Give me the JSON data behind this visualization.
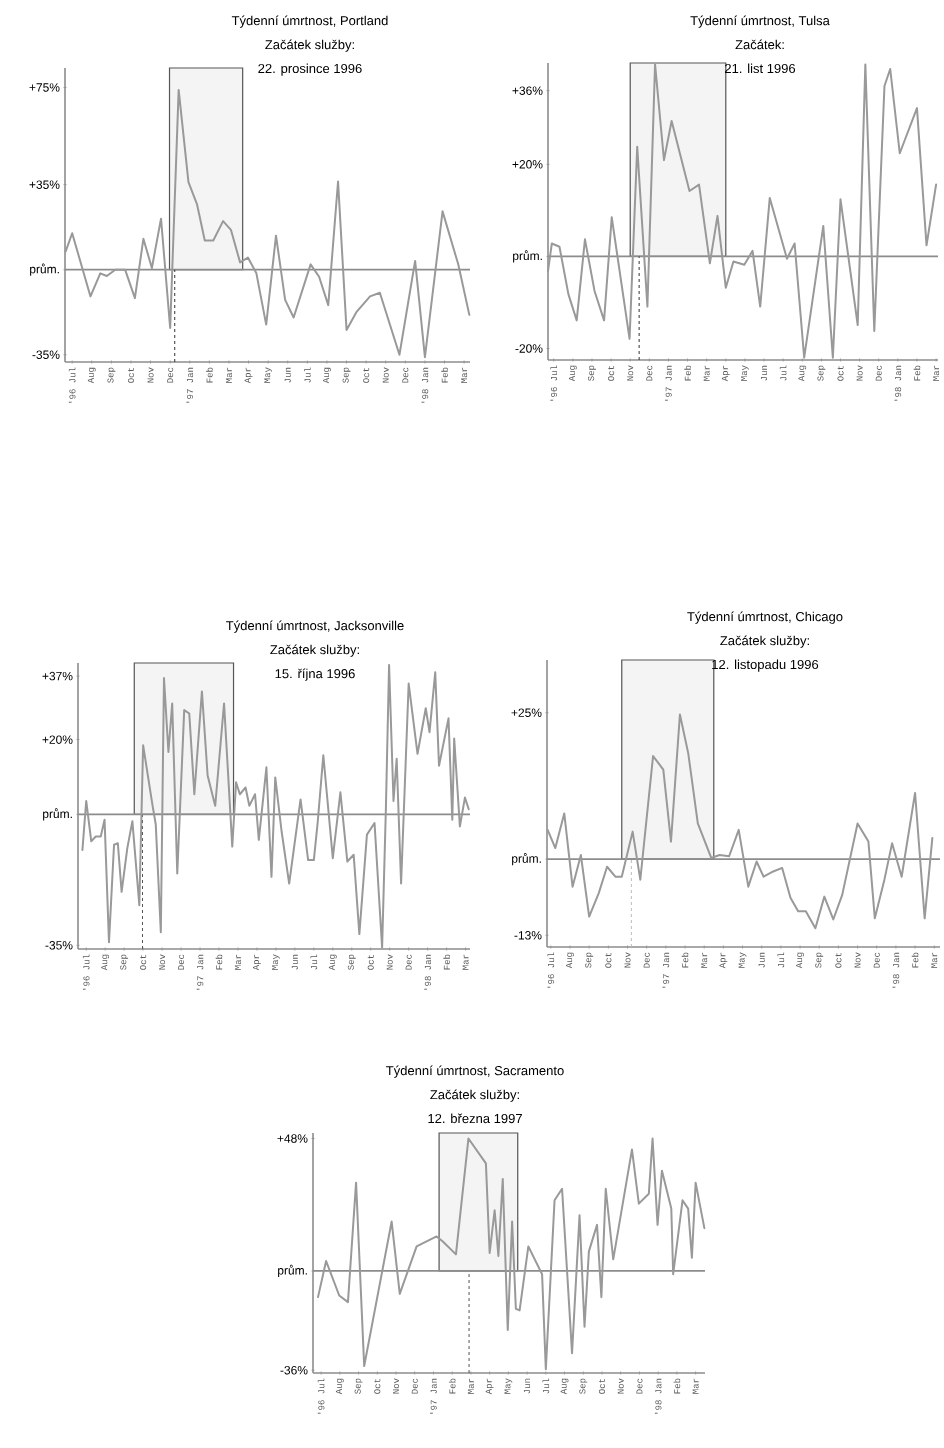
{
  "chart_data": [
    {
      "type": "line",
      "title": "Týdenní úmrtnost, Portland",
      "subtitle": "Začátek služby:",
      "annotations": [
        "22. prosince 1996"
      ],
      "color": "#999999",
      "x": [
        "1996-07-06",
        "1996-07-16",
        "1996-08-14",
        "1996-08-29",
        "1996-09-09",
        "1996-09-22",
        "1996-10-07",
        "1996-10-22",
        "1996-11-05",
        "1996-11-18",
        "1996-12-02",
        "1996-12-16",
        "1996-12-29",
        "1997-01-14",
        "1997-01-27",
        "1997-02-09",
        "1997-02-22",
        "1997-03-07",
        "1997-03-19",
        "1997-04-03",
        "1997-04-15",
        "1997-04-28",
        "1997-05-13",
        "1997-05-28",
        "1997-06-12",
        "1997-06-25",
        "1997-07-21",
        "1997-08-04",
        "1997-08-18",
        "1997-09-03",
        "1997-09-16",
        "1997-10-01",
        "1997-10-22",
        "1997-11-07",
        "1997-12-07",
        "1998-01-01",
        "1998-01-16",
        "1998-02-13",
        "1998-03-07",
        "1998-03-24"
      ],
      "values": [
        7.5,
        15,
        -11,
        -1.5,
        -2.6,
        0,
        0,
        -11.7,
        12.7,
        0.7,
        21,
        -24,
        74,
        36,
        27,
        12,
        12,
        20,
        16.4,
        3,
        5,
        -1.5,
        -22.6,
        14,
        -12.4,
        -19.7,
        2.2,
        -2.9,
        -14.6,
        36.3,
        -24.8,
        -17.5,
        -11,
        -9.5,
        -35,
        3.6,
        -36,
        24,
        2.2,
        -18.6
      ],
      "xlim": [
        "1996-07-05",
        "1998-03-25"
      ],
      "ylim": [
        -38,
        83
      ],
      "xticks": [
        {
          "value": "1996-07-16",
          "label": "'96 Jul"
        },
        {
          "value": "1996-08-16",
          "label": "Aug"
        },
        {
          "value": "1996-09-16",
          "label": "Sep"
        },
        {
          "value": "1996-10-16",
          "label": "Oct"
        },
        {
          "value": "1996-11-16",
          "label": "Nov"
        },
        {
          "value": "1996-12-16",
          "label": "Dec"
        },
        {
          "value": "1997-01-16",
          "label": "'97 Jan"
        },
        {
          "value": "1997-02-16",
          "label": "Feb"
        },
        {
          "value": "1997-03-16",
          "label": "Mar"
        },
        {
          "value": "1997-04-16",
          "label": "Apr"
        },
        {
          "value": "1997-05-16",
          "label": "May"
        },
        {
          "value": "1997-06-16",
          "label": "Jun"
        },
        {
          "value": "1997-07-16",
          "label": "Jul"
        },
        {
          "value": "1997-08-16",
          "label": "Aug"
        },
        {
          "value": "1997-09-16",
          "label": "Sep"
        },
        {
          "value": "1997-10-16",
          "label": "Oct"
        },
        {
          "value": "1997-11-16",
          "label": "Nov"
        },
        {
          "value": "1997-12-16",
          "label": "Dec"
        },
        {
          "value": "1998-01-16",
          "label": "'98 Jan"
        },
        {
          "value": "1998-02-16",
          "label": "Feb"
        },
        {
          "value": "1998-03-16",
          "label": "Mar"
        }
      ],
      "yticks": [
        {
          "value": 75,
          "label": "+75%"
        },
        {
          "value": 35,
          "label": "+35%"
        },
        {
          "value": 0,
          "label": "prům."
        },
        {
          "value": -35,
          "label": "-35%"
        }
      ],
      "ref_lines": [
        {
          "axis": "y",
          "value": 0,
          "color": "#8c8c8c"
        },
        {
          "axis": "x",
          "value": "1996-12-23",
          "color": "#333333",
          "line_style": "dashed"
        }
      ],
      "bands": [
        {
          "axis": "x",
          "from": "1996-12-15",
          "to": "1997-04-07",
          "color": "#f4f4f4"
        }
      ]
    },
    {
      "type": "line",
      "title": "Týdenní úmrtnost, Tulsa",
      "subtitle": "Začátek:",
      "annotations": [
        "21. list 1996"
      ],
      "color": "#999999",
      "x": [
        "1996-07-07",
        "1996-07-13",
        "1996-07-25",
        "1996-08-09",
        "1996-08-22",
        "1996-09-05",
        "1996-09-20",
        "1996-10-05",
        "1996-10-17",
        "1996-11-15",
        "1996-11-27",
        "1996-12-13",
        "1996-12-25",
        "1997-01-09",
        "1997-01-21",
        "1997-02-19",
        "1997-03-04",
        "1997-03-21",
        "1997-04-03",
        "1997-04-16",
        "1997-04-28",
        "1997-05-15",
        "1997-05-28",
        "1997-06-10",
        "1997-06-25",
        "1997-07-22",
        "1997-08-04",
        "1997-08-19",
        "1997-09-19",
        "1997-10-04",
        "1997-10-16",
        "1997-11-13",
        "1997-11-25",
        "1997-12-09",
        "1997-12-25",
        "1998-01-04",
        "1998-01-19",
        "1998-02-16",
        "1998-03-01",
        "1998-03-16"
      ],
      "values": [
        -3.2,
        2.8,
        2.1,
        -8.2,
        -13.9,
        3.7,
        -7.5,
        -13.9,
        8.5,
        -17.9,
        23.8,
        -10.9,
        41.7,
        20.9,
        29.4,
        14.2,
        15.6,
        -1.5,
        8.8,
        -6.8,
        -1.1,
        -1.8,
        1.2,
        -10.9,
        12.7,
        -0.5,
        2.8,
        -22,
        6.6,
        -22,
        12.4,
        -14.9,
        41.7,
        -16.2,
        37,
        40.7,
        22.4,
        32.2,
        2.4,
        15.6
      ],
      "xlim": [
        "1996-07-07",
        "1998-03-19"
      ],
      "ylim": [
        -22.5,
        42
      ],
      "xticks": [
        {
          "value": "1996-07-16",
          "label": "'96 Jul"
        },
        {
          "value": "1996-08-16",
          "label": "Aug"
        },
        {
          "value": "1996-09-16",
          "label": "Sep"
        },
        {
          "value": "1996-10-16",
          "label": "Oct"
        },
        {
          "value": "1996-11-16",
          "label": "Nov"
        },
        {
          "value": "1996-12-16",
          "label": "Dec"
        },
        {
          "value": "1997-01-16",
          "label": "'97 Jan"
        },
        {
          "value": "1997-02-16",
          "label": "Feb"
        },
        {
          "value": "1997-03-16",
          "label": "Mar"
        },
        {
          "value": "1997-04-16",
          "label": "Apr"
        },
        {
          "value": "1997-05-16",
          "label": "May"
        },
        {
          "value": "1997-06-16",
          "label": "Jun"
        },
        {
          "value": "1997-07-16",
          "label": "Jul"
        },
        {
          "value": "1997-08-16",
          "label": "Aug"
        },
        {
          "value": "1997-09-16",
          "label": "Sep"
        },
        {
          "value": "1997-10-16",
          "label": "Oct"
        },
        {
          "value": "1997-11-16",
          "label": "Nov"
        },
        {
          "value": "1997-12-16",
          "label": "Dec"
        },
        {
          "value": "1998-01-16",
          "label": "'98 Jan"
        },
        {
          "value": "1998-02-16",
          "label": "Feb"
        },
        {
          "value": "1998-03-16",
          "label": "Mar"
        }
      ],
      "yticks": [
        {
          "value": 36,
          "label": "+36%"
        },
        {
          "value": 20,
          "label": "+20%"
        },
        {
          "value": 0,
          "label": "prům."
        },
        {
          "value": -20,
          "label": "-20%"
        }
      ],
      "ref_lines": [
        {
          "axis": "y",
          "value": 0,
          "color": "#8c8c8c"
        },
        {
          "axis": "x",
          "value": "1996-11-30",
          "color": "#333333",
          "line_style": "dashed"
        }
      ],
      "bands": [
        {
          "axis": "x",
          "from": "1996-11-16",
          "to": "1997-04-16",
          "color": "#f4f4f4"
        }
      ]
    },
    {
      "type": "line",
      "title": "Týdenní úmrtnost, Jacksonville",
      "subtitle": "Začátek služby:",
      "annotations": [
        "15. října 1996"
      ],
      "color": "#999999",
      "x": [
        "1996-07-10",
        "1996-07-16",
        "1996-07-24",
        "1996-08-01",
        "1996-08-09",
        "1996-08-15",
        "1996-08-22",
        "1996-08-30",
        "1996-09-06",
        "1996-09-12",
        "1996-09-21",
        "1996-09-29",
        "1996-10-10",
        "1996-10-16",
        "1996-11-01",
        "1996-11-06",
        "1996-11-14",
        "1996-11-19",
        "1996-11-26",
        "1996-12-02",
        "1996-12-10",
        "1996-12-21",
        "1996-12-29",
        "1997-01-07",
        "1997-01-19",
        "1997-01-28",
        "1997-02-10",
        "1997-02-24",
        "1997-03-07",
        "1997-03-13",
        "1997-03-19",
        "1997-03-28",
        "1997-04-04",
        "1997-04-13",
        "1997-04-19",
        "1997-05-01",
        "1997-05-09",
        "1997-05-15",
        "1997-05-25",
        "1997-06-07",
        "1997-06-25",
        "1997-07-07",
        "1997-07-16",
        "1997-07-22",
        "1997-08-01",
        "1997-08-16",
        "1997-08-28",
        "1997-09-09",
        "1997-09-19",
        "1997-09-28",
        "1997-10-10",
        "1997-10-22",
        "1997-11-04",
        "1997-11-10",
        "1997-11-15",
        "1997-11-22",
        "1997-11-27",
        "1997-12-04",
        "1997-12-16",
        "1997-12-30",
        "1998-01-13",
        "1998-01-19",
        "1998-01-28",
        "1998-02-04",
        "1998-02-19",
        "1998-02-25",
        "1998-02-28",
        "1998-03-07",
        "1998-03-15",
        "1998-03-21"
      ],
      "values": [
        -9.5,
        3.6,
        -7.2,
        -5.9,
        -5.9,
        -1.4,
        -34.2,
        -8.1,
        -7.7,
        -20.7,
        -9,
        -1.8,
        -24.3,
        18.5,
        2.3,
        -2.7,
        -31.5,
        36.5,
        16.7,
        29.7,
        -15.8,
        27.9,
        27,
        5.4,
        32.9,
        10.4,
        2.3,
        29.7,
        -8.6,
        8.6,
        5.4,
        7.2,
        2.3,
        5.4,
        -6.8,
        12.6,
        -16.7,
        9.9,
        -4.5,
        -18.5,
        4,
        -12.2,
        -12.2,
        -2.3,
        15.8,
        -11.7,
        5.9,
        -12.6,
        -10.8,
        -32,
        -5.4,
        -2.3,
        -35.6,
        1.8,
        40,
        3.6,
        14.9,
        -18.5,
        35,
        16.2,
        28.4,
        22,
        38,
        13,
        25.7,
        -1.4,
        20.3,
        -3.2,
        4.5,
        1.4
      ],
      "xlim": [
        "1996-07-03",
        "1998-03-23"
      ],
      "ylim": [
        -36,
        40.5
      ],
      "xticks": [
        {
          "value": "1996-07-16",
          "label": "'96 Jul"
        },
        {
          "value": "1996-08-16",
          "label": "Aug"
        },
        {
          "value": "1996-09-16",
          "label": "Sep"
        },
        {
          "value": "1996-10-16",
          "label": "Oct"
        },
        {
          "value": "1996-11-16",
          "label": "Nov"
        },
        {
          "value": "1996-12-16",
          "label": "Dec"
        },
        {
          "value": "1997-01-16",
          "label": "'97 Jan"
        },
        {
          "value": "1997-02-16",
          "label": "Feb"
        },
        {
          "value": "1997-03-16",
          "label": "Mar"
        },
        {
          "value": "1997-04-16",
          "label": "Apr"
        },
        {
          "value": "1997-05-16",
          "label": "May"
        },
        {
          "value": "1997-06-16",
          "label": "Jun"
        },
        {
          "value": "1997-07-16",
          "label": "Jul"
        },
        {
          "value": "1997-08-16",
          "label": "Aug"
        },
        {
          "value": "1997-09-16",
          "label": "Sep"
        },
        {
          "value": "1997-10-16",
          "label": "Oct"
        },
        {
          "value": "1997-11-16",
          "label": "Nov"
        },
        {
          "value": "1997-12-16",
          "label": "Dec"
        },
        {
          "value": "1998-01-16",
          "label": "'98 Jan"
        },
        {
          "value": "1998-02-16",
          "label": "Feb"
        },
        {
          "value": "1998-03-16",
          "label": "Mar"
        }
      ],
      "yticks": [
        {
          "value": 37,
          "label": "+37%"
        },
        {
          "value": 20,
          "label": "+20%"
        },
        {
          "value": 0,
          "label": "prům."
        },
        {
          "value": -35,
          "label": "-35%"
        }
      ],
      "ref_lines": [
        {
          "axis": "y",
          "value": 0,
          "color": "#8c8c8c"
        },
        {
          "axis": "x",
          "value": "1996-10-15",
          "color": "#555555",
          "line_style": "dashed"
        }
      ],
      "bands": [
        {
          "axis": "x",
          "from": "1996-10-02",
          "to": "1997-03-09",
          "color": "#f4f4f4"
        }
      ]
    },
    {
      "type": "line",
      "title": "Týdenní úmrtnost, Chicago",
      "subtitle": "Začátek služby:",
      "annotations": [
        "12. listopadu 1996"
      ],
      "color": "#999999",
      "x": [
        "1996-07-11",
        "1996-07-23",
        "1996-08-07",
        "1996-08-20",
        "1996-09-03",
        "1996-09-16",
        "1996-10-01",
        "1996-10-14",
        "1996-10-27",
        "1996-11-07",
        "1996-11-24",
        "1996-12-06",
        "1996-12-26",
        "1997-01-12",
        "1997-01-24",
        "1997-02-08",
        "1997-02-21",
        "1997-03-06",
        "1997-03-27",
        "1997-04-10",
        "1997-04-25",
        "1997-05-10",
        "1997-05-25",
        "1997-06-08",
        "1997-06-19",
        "1997-07-04",
        "1997-07-18",
        "1997-08-01",
        "1997-08-13",
        "1997-08-25",
        "1997-09-10",
        "1997-09-24",
        "1997-10-08",
        "1997-10-22",
        "1997-11-16",
        "1997-12-03",
        "1997-12-13",
        "1997-12-28",
        "1998-01-10",
        "1998-01-25",
        "1998-02-16",
        "1998-03-01",
        "1998-03-13"
      ],
      "values": [
        5,
        1.9,
        7.8,
        -4.7,
        0.7,
        -9.8,
        -5.8,
        -1.3,
        -3,
        -3,
        4.7,
        -3.5,
        17.6,
        15.3,
        3,
        24.7,
        18.1,
        6.1,
        0.2,
        0.7,
        0.5,
        5,
        -4.7,
        -0.4,
        -3,
        -2.1,
        -1.5,
        -6.6,
        -8.9,
        -8.9,
        -11.8,
        -6.4,
        -10.3,
        -6.1,
        6.1,
        3,
        -10.1,
        -3.5,
        2.7,
        -3,
        11.3,
        -10.1,
        3.6
      ],
      "xlim": [
        "1996-07-10",
        "1998-03-25"
      ],
      "ylim": [
        -15,
        34
      ],
      "xticks": [
        {
          "value": "1996-07-16",
          "label": "'96 Jul"
        },
        {
          "value": "1996-08-16",
          "label": "Aug"
        },
        {
          "value": "1996-09-16",
          "label": "Sep"
        },
        {
          "value": "1996-10-16",
          "label": "Oct"
        },
        {
          "value": "1996-11-16",
          "label": "Nov"
        },
        {
          "value": "1996-12-16",
          "label": "Dec"
        },
        {
          "value": "1997-01-16",
          "label": "'97 Jan"
        },
        {
          "value": "1997-02-16",
          "label": "Feb"
        },
        {
          "value": "1997-03-16",
          "label": "Mar"
        },
        {
          "value": "1997-04-16",
          "label": "Apr"
        },
        {
          "value": "1997-05-16",
          "label": "May"
        },
        {
          "value": "1997-06-16",
          "label": "Jun"
        },
        {
          "value": "1997-07-16",
          "label": "Jul"
        },
        {
          "value": "1997-08-16",
          "label": "Aug"
        },
        {
          "value": "1997-09-16",
          "label": "Sep"
        },
        {
          "value": "1997-10-16",
          "label": "Oct"
        },
        {
          "value": "1997-11-16",
          "label": "Nov"
        },
        {
          "value": "1997-12-16",
          "label": "Dec"
        },
        {
          "value": "1998-01-16",
          "label": "'98 Jan"
        },
        {
          "value": "1998-02-16",
          "label": "Feb"
        },
        {
          "value": "1998-03-16",
          "label": "Mar"
        }
      ],
      "yticks": [
        {
          "value": 25,
          "label": "+25%"
        },
        {
          "value": 0,
          "label": "prům."
        },
        {
          "value": -13,
          "label": "-13%"
        }
      ],
      "ref_lines": [
        {
          "axis": "y",
          "value": 0,
          "color": "#8c8c8c"
        },
        {
          "axis": "x",
          "value": "1996-11-22",
          "color": "#bbbbbb",
          "line_style": "dashed"
        }
      ],
      "bands": [
        {
          "axis": "x",
          "from": "1996-11-07",
          "to": "1997-04-01",
          "color": "#f4f4f4"
        }
      ]
    },
    {
      "type": "line",
      "title": "Týdenní úmrtnost, Sacramento",
      "subtitle": "Začátek služby:",
      "annotations": [
        "12. března 1997"
      ],
      "color": "#999999",
      "x": [
        "1996-07-11",
        "1996-07-24",
        "1996-08-15",
        "1996-08-29",
        "1996-09-12",
        "1996-09-25",
        "1996-11-09",
        "1996-11-22",
        "1996-12-19",
        "1997-01-21",
        "1997-02-01",
        "1997-02-22",
        "1997-03-12",
        "1997-04-10",
        "1997-04-16",
        "1997-04-24",
        "1997-04-30",
        "1997-05-07",
        "1997-05-15",
        "1997-05-22",
        "1997-05-28",
        "1997-06-04",
        "1997-06-18",
        "1997-07-10",
        "1997-07-16",
        "1997-07-30",
        "1997-08-12",
        "1997-08-28",
        "1997-09-10",
        "1997-09-18",
        "1997-09-25",
        "1997-10-08",
        "1997-10-15",
        "1997-10-22",
        "1997-11-04",
        "1997-12-04",
        "1997-12-15",
        "1998-01-01",
        "1998-01-07",
        "1998-01-15",
        "1998-01-22",
        "1998-02-07",
        "1998-02-10",
        "1998-02-25",
        "1998-03-04",
        "1998-03-10",
        "1998-03-16",
        "1998-03-30"
      ],
      "values": [
        -9.5,
        3.6,
        -8.9,
        -11.3,
        32,
        -34.5,
        17.9,
        -8.3,
        8.9,
        12.5,
        10.7,
        6,
        48,
        39,
        6.5,
        22,
        5.4,
        33.3,
        -21.4,
        17.9,
        -13.7,
        -14.3,
        8.9,
        -1.2,
        -35.6,
        25.6,
        29.8,
        -29.8,
        20.2,
        -20.2,
        7.1,
        16.7,
        -9.5,
        29.8,
        4.2,
        44,
        24.4,
        28,
        48,
        16.7,
        36.3,
        22.6,
        -1.2,
        25.6,
        22.6,
        4.8,
        32,
        15.5
      ],
      "xlim": [
        "1996-07-03",
        "1998-04-01"
      ],
      "ylim": [
        -37,
        50
      ],
      "xticks": [
        {
          "value": "1996-07-16",
          "label": "'96 Jul"
        },
        {
          "value": "1996-08-16",
          "label": "Aug"
        },
        {
          "value": "1996-09-16",
          "label": "Sep"
        },
        {
          "value": "1996-10-16",
          "label": "Oct"
        },
        {
          "value": "1996-11-16",
          "label": "Nov"
        },
        {
          "value": "1996-12-16",
          "label": "Dec"
        },
        {
          "value": "1997-01-16",
          "label": "'97 Jan"
        },
        {
          "value": "1997-02-16",
          "label": "Feb"
        },
        {
          "value": "1997-03-16",
          "label": "Mar"
        },
        {
          "value": "1997-04-16",
          "label": "Apr"
        },
        {
          "value": "1997-05-16",
          "label": "May"
        },
        {
          "value": "1997-06-16",
          "label": "Jun"
        },
        {
          "value": "1997-07-16",
          "label": "Jul"
        },
        {
          "value": "1997-08-16",
          "label": "Aug"
        },
        {
          "value": "1997-09-16",
          "label": "Sep"
        },
        {
          "value": "1997-10-16",
          "label": "Oct"
        },
        {
          "value": "1997-11-16",
          "label": "Nov"
        },
        {
          "value": "1997-12-16",
          "label": "Dec"
        },
        {
          "value": "1998-01-16",
          "label": "'98 Jan"
        },
        {
          "value": "1998-02-16",
          "label": "Feb"
        },
        {
          "value": "1998-03-16",
          "label": "Mar"
        }
      ],
      "yticks": [
        {
          "value": 48,
          "label": "+48%"
        },
        {
          "value": 0,
          "label": "prům."
        },
        {
          "value": -36,
          "label": "-36%"
        }
      ],
      "ref_lines": [
        {
          "axis": "y",
          "value": 0,
          "color": "#8c8c8c"
        },
        {
          "axis": "x",
          "value": "1997-03-13",
          "color": "#555555",
          "line_style": "dashed"
        }
      ],
      "bands": [
        {
          "axis": "x",
          "from": "1997-01-25",
          "to": "1997-06-01",
          "color": "#f4f4f4"
        }
      ]
    }
  ]
}
